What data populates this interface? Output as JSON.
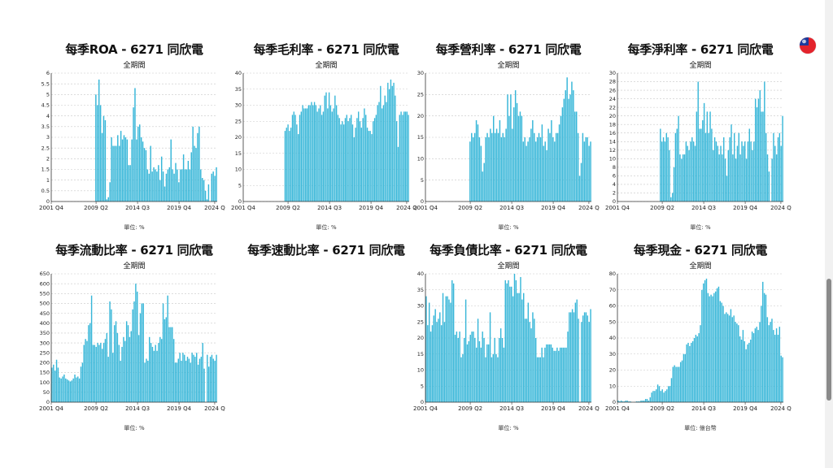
{
  "colors": {
    "bar": "#36b6d8",
    "grid": "#c8c8c8",
    "axis": "#333333"
  },
  "flag_icon": "taiwan-flag-icon",
  "chart_data": [
    {
      "type": "bar",
      "title": "每季ROA - 6271 同欣電",
      "subtitle": "全期間",
      "unit_label": "單位: %",
      "xticks": [
        "2001 Q4",
        "2009 Q2",
        "2014 Q3",
        "2019 Q4",
        "2024 Q"
      ],
      "ylim": [
        0,
        6
      ],
      "yticks": [
        0,
        0.5,
        1,
        1.5,
        2,
        2.5,
        3,
        3.5,
        4,
        4.5,
        5,
        5.5,
        6
      ],
      "values": [
        0,
        0,
        0,
        0,
        0,
        0,
        0,
        0,
        0,
        0,
        0,
        0,
        0,
        0,
        0,
        0,
        0,
        0,
        0,
        0,
        0,
        0,
        0,
        0,
        0,
        0,
        0,
        0,
        5,
        4.5,
        5.7,
        4.5,
        3.2,
        4,
        3.8,
        0.1,
        0.2,
        0.9,
        3,
        2.6,
        2.6,
        2.6,
        3.1,
        2.6,
        3.3,
        2.9,
        3.1,
        3,
        2.9,
        1.7,
        1.7,
        2.9,
        4.4,
        5.3,
        2.9,
        3.5,
        3.6,
        3,
        2.8,
        2.5,
        2.4,
        1.5,
        1.3,
        2.6,
        1.4,
        1.6,
        1.5,
        1.4,
        1.7,
        1,
        2.1,
        1.4,
        0.7,
        1.3,
        1.5,
        1.6,
        2.9,
        1.5,
        1.3,
        1.8,
        1.5,
        0.9,
        1.5,
        1.5,
        2.2,
        1.5,
        1.5,
        1.9,
        1.5,
        2.3,
        3.5,
        2.6,
        2.5,
        3.2,
        3.5,
        1.5,
        1.1,
        1,
        0.5,
        0.1,
        0.8,
        0,
        1.3,
        1.4,
        1.2,
        1.6
      ]
    },
    {
      "type": "bar",
      "title": "每季毛利率 - 6271 同欣電",
      "subtitle": "全期間",
      "unit_label": "單位: %",
      "xticks": [
        "2001 Q4",
        "2009 Q2",
        "2014 Q3",
        "2019 Q4",
        "2024 Q"
      ],
      "ylim": [
        0,
        40
      ],
      "yticks": [
        0,
        5,
        10,
        15,
        20,
        25,
        30,
        35,
        40
      ],
      "values": [
        0,
        0,
        0,
        0,
        0,
        0,
        0,
        0,
        0,
        0,
        0,
        0,
        0,
        0,
        0,
        0,
        0,
        0,
        0,
        0,
        0,
        0,
        0,
        0,
        0,
        0,
        0,
        0,
        22,
        23,
        24,
        22,
        23,
        27,
        28,
        27,
        24,
        21,
        27,
        28,
        30,
        29,
        29,
        29,
        30,
        30,
        31,
        30,
        31,
        30,
        28,
        29,
        30,
        27,
        28,
        33,
        34,
        29,
        34,
        30,
        28,
        29,
        33,
        30,
        27,
        26,
        24,
        25,
        24,
        26,
        27,
        25,
        26,
        27,
        24,
        20,
        23,
        26,
        28,
        25,
        23,
        26,
        29,
        27,
        23,
        22,
        22,
        21,
        25,
        26,
        27,
        30,
        31,
        36,
        29,
        30,
        33,
        31,
        37,
        35,
        38,
        36,
        37,
        33,
        25,
        17,
        27,
        28,
        27,
        28,
        28,
        28,
        27
      ]
    },
    {
      "type": "bar",
      "title": "每季營利率 - 6271 同欣電",
      "subtitle": "全期間",
      "unit_label": "單位: %",
      "xticks": [
        "2001 Q4",
        "2009 Q2",
        "2014 Q3",
        "2019 Q4",
        "2024 Q"
      ],
      "ylim": [
        0,
        30
      ],
      "yticks": [
        0,
        5,
        10,
        15,
        20,
        25,
        30
      ],
      "values": [
        0,
        0,
        0,
        0,
        0,
        0,
        0,
        0,
        0,
        0,
        0,
        0,
        0,
        0,
        0,
        0,
        0,
        0,
        0,
        0,
        0,
        0,
        0,
        0,
        0,
        0,
        0,
        0,
        14,
        16,
        15,
        16,
        19,
        18,
        15,
        13,
        7,
        9,
        15,
        16,
        15,
        17,
        16,
        20,
        16,
        17,
        16,
        19,
        15,
        16,
        15,
        17,
        25,
        20,
        25,
        17,
        22,
        26,
        23,
        20,
        21,
        20,
        14,
        15,
        13,
        14,
        15,
        17,
        19,
        16,
        14,
        15,
        16,
        15,
        18,
        13,
        14,
        12,
        17,
        16,
        19,
        15,
        14,
        16,
        16,
        18,
        20,
        22,
        24,
        26,
        29,
        24,
        25,
        28,
        26,
        21,
        21,
        16,
        6,
        9,
        16,
        14,
        15,
        15,
        13,
        14
      ]
    },
    {
      "type": "bar",
      "title": "每季淨利率 - 6271 同欣電",
      "subtitle": "全期間",
      "unit_label": "單位: %",
      "xticks": [
        "2001 Q4",
        "2009 Q2",
        "2014 Q3",
        "2019 Q4",
        "2024 Q"
      ],
      "ylim": [
        0,
        30
      ],
      "yticks": [
        0,
        2,
        4,
        6,
        8,
        10,
        12,
        14,
        16,
        18,
        20,
        22,
        24,
        26,
        28,
        30
      ],
      "values": [
        0,
        0,
        0,
        0,
        0,
        0,
        0,
        0,
        0,
        0,
        0,
        0,
        0,
        0,
        0,
        0,
        0,
        0,
        0,
        0,
        0,
        0,
        0,
        0,
        0,
        0,
        0,
        0,
        17,
        14,
        15,
        14,
        16,
        15,
        12,
        1,
        2,
        8,
        16,
        17,
        20,
        11,
        10,
        11,
        11,
        14,
        13,
        12,
        14,
        15,
        14,
        13,
        21,
        28,
        17,
        17,
        19,
        23,
        16,
        21,
        16,
        21,
        17,
        12,
        15,
        14,
        13,
        11,
        13,
        11,
        15,
        10,
        6,
        12,
        15,
        18,
        11,
        16,
        10,
        13,
        16,
        11,
        14,
        13,
        14,
        10,
        14,
        17,
        14,
        12,
        14,
        24,
        22,
        24,
        26,
        21,
        21,
        28,
        16,
        11,
        7,
        0,
        10,
        16,
        13,
        11,
        15,
        16,
        13,
        20
      ]
    },
    {
      "type": "bar",
      "title": "每季流動比率 - 6271 同欣電",
      "subtitle": "全期間",
      "unit_label": "單位: %",
      "xticks": [
        "2001 Q4",
        "2009 Q2",
        "2014 Q3",
        "2019 Q4",
        "2024 Q"
      ],
      "ylim": [
        0,
        650
      ],
      "yticks": [
        0,
        50,
        100,
        150,
        200,
        250,
        300,
        350,
        400,
        450,
        500,
        550,
        600,
        650
      ],
      "values": [
        175,
        190,
        160,
        215,
        175,
        125,
        120,
        130,
        140,
        120,
        115,
        110,
        105,
        110,
        120,
        140,
        125,
        130,
        120,
        180,
        200,
        290,
        320,
        310,
        390,
        400,
        540,
        290,
        290,
        280,
        300,
        290,
        300,
        270,
        300,
        320,
        350,
        230,
        510,
        470,
        250,
        390,
        410,
        350,
        290,
        210,
        280,
        330,
        310,
        410,
        390,
        330,
        360,
        470,
        510,
        600,
        560,
        340,
        450,
        500,
        500,
        200,
        220,
        210,
        330,
        300,
        280,
        260,
        290,
        260,
        300,
        330,
        320,
        500,
        420,
        430,
        540,
        380,
        380,
        380,
        320,
        200,
        200,
        220,
        250,
        210,
        250,
        240,
        210,
        230,
        220,
        200,
        250,
        240,
        230,
        250,
        190,
        220,
        230,
        300,
        170,
        0,
        240,
        180,
        230,
        240,
        220,
        210,
        240
      ]
    },
    {
      "type": "bar",
      "title": "每季速動比率 - 6271 同欣電",
      "subtitle": "",
      "unit_label": "",
      "xticks": [],
      "ylim": [
        0,
        1
      ],
      "yticks": [],
      "values": []
    },
    {
      "type": "bar",
      "title": "每季負債比率 - 6271 同欣電",
      "subtitle": "全期間",
      "unit_label": "單位: %",
      "xticks": [
        "2001 Q4",
        "2009 Q2",
        "2014 Q3",
        "2019 Q4",
        "2024 Q"
      ],
      "ylim": [
        0,
        40
      ],
      "yticks": [
        0,
        5,
        10,
        15,
        20,
        25,
        30,
        35,
        40
      ],
      "values": [
        33,
        24,
        31,
        22,
        24,
        27,
        29,
        25,
        26,
        28,
        24,
        34,
        25,
        33,
        33,
        32,
        31,
        38,
        37,
        21,
        22,
        20,
        22,
        14,
        15,
        20,
        32,
        18,
        19,
        21,
        22,
        22,
        20,
        17,
        26,
        19,
        17,
        22,
        20,
        14,
        18,
        18,
        28,
        14,
        15,
        20,
        15,
        14,
        20,
        23,
        20,
        17,
        38,
        37,
        38,
        36,
        36,
        33,
        40,
        38,
        34,
        34,
        39,
        32,
        34,
        26,
        26,
        31,
        25,
        23,
        28,
        26,
        20,
        14,
        14,
        14,
        17,
        14,
        17,
        18,
        18,
        18,
        18,
        17,
        16,
        16,
        17,
        16,
        17,
        17,
        17,
        17,
        17,
        22,
        28,
        28,
        29,
        28,
        31,
        32,
        26,
        0,
        25,
        27,
        28,
        28,
        27,
        25,
        29
      ]
    },
    {
      "type": "bar",
      "title": "每季現金 - 6271 同欣電",
      "subtitle": "全期間",
      "unit_label": "單位: 億台幣",
      "xticks": [
        "2001 Q4",
        "2009 Q2",
        "2014 Q3",
        "2019 Q4",
        "2024 Q"
      ],
      "ylim": [
        0,
        80
      ],
      "yticks": [
        0,
        10,
        20,
        30,
        40,
        50,
        60,
        70,
        80
      ],
      "values": [
        1,
        0.5,
        1,
        0.5,
        0.5,
        1,
        1,
        0.5,
        0.5,
        0,
        0,
        0,
        0.5,
        0.5,
        0.5,
        1,
        1,
        1,
        2,
        2,
        1,
        3,
        6,
        7,
        7,
        8,
        11,
        10,
        7,
        8,
        6,
        7,
        8,
        10,
        10,
        15,
        22,
        23,
        22,
        22,
        22,
        25,
        26,
        30,
        30,
        36,
        37,
        35,
        37,
        38,
        40,
        42,
        41,
        43,
        48,
        70,
        74,
        76,
        77,
        68,
        66,
        67,
        66,
        68,
        69,
        71,
        72,
        63,
        62,
        60,
        55,
        56,
        55,
        54,
        58,
        53,
        54,
        50,
        49,
        48,
        41,
        39,
        45,
        38,
        33,
        36,
        37,
        39,
        44,
        43,
        46,
        47,
        45,
        50,
        60,
        75,
        68,
        67,
        53,
        48,
        50,
        52,
        45,
        42,
        46,
        42,
        47,
        29,
        28
      ]
    }
  ]
}
